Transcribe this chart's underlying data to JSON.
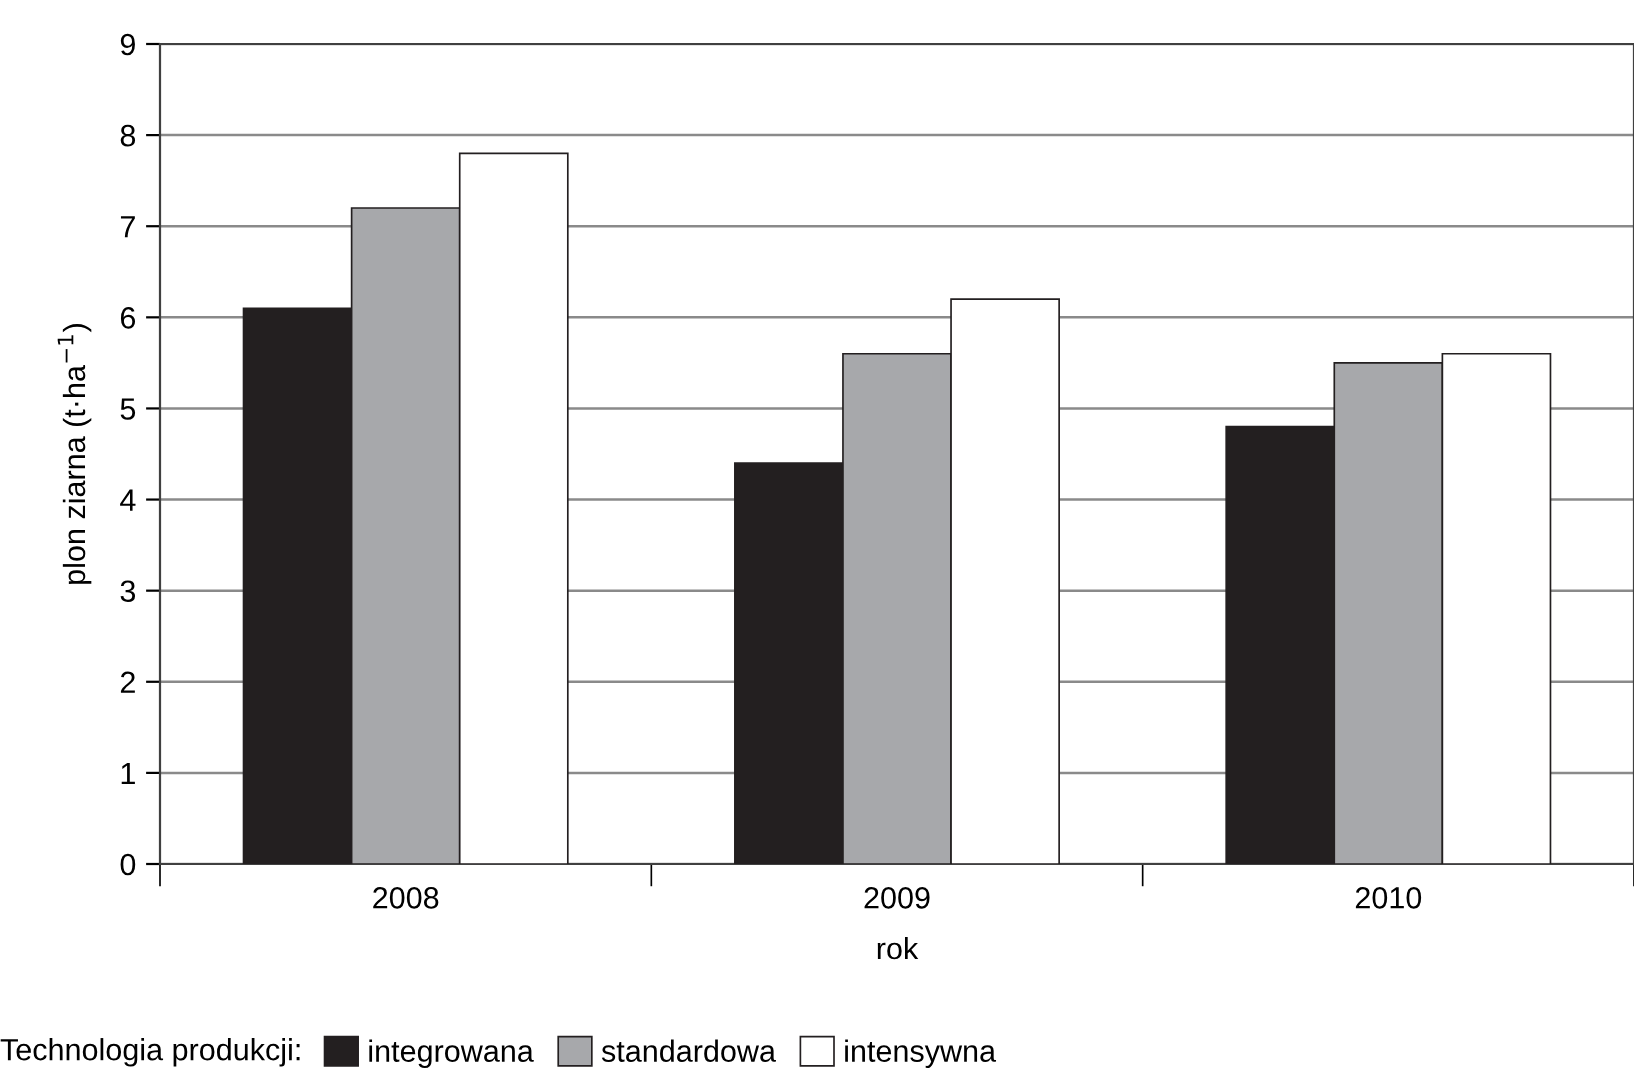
{
  "chart_data": {
    "type": "bar",
    "xlabel": "rok",
    "ylabel": "plon ziarna (t·ha$^{−1}$)",
    "legend_title": "Technologia produkcji:",
    "categories": [
      "2008",
      "2009",
      "2010"
    ],
    "series": [
      {
        "name": "integrowana",
        "color": "#231f20",
        "values": [
          6.1,
          4.4,
          4.8
        ]
      },
      {
        "name": "standardowa",
        "color": "#a7a8ab",
        "values": [
          7.2,
          5.6,
          5.5
        ]
      },
      {
        "name": "intensywna",
        "color": "#ffffff",
        "values": [
          7.8,
          6.2,
          5.6
        ]
      }
    ],
    "ylim": [
      0,
      9
    ],
    "yticks": [
      0,
      1,
      2,
      3,
      4,
      5,
      6,
      7,
      8,
      9
    ],
    "grid": "y",
    "legend": "bottom"
  }
}
